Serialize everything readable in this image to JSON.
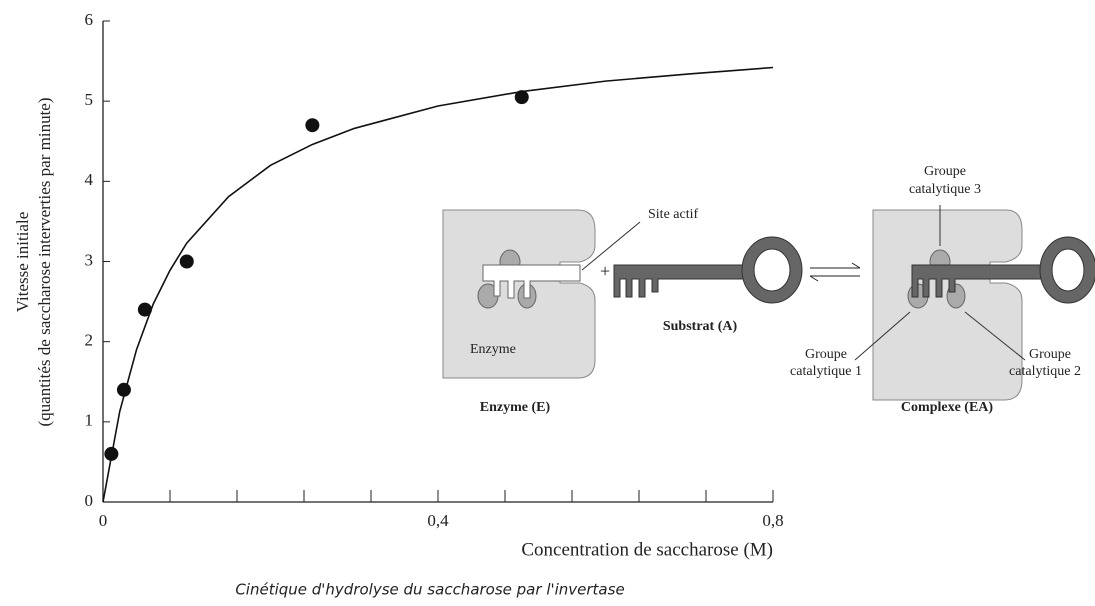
{
  "chart_data": {
    "type": "scatter",
    "ylabel": [
      "Vitesse initiale",
      "(quantités de saccharose interverties par minute)"
    ],
    "xlabel": "Concentration de saccharose (M)",
    "caption": "Cinétique d'hydrolyse du saccharose par l'invertase",
    "xlim": [
      0,
      0.8
    ],
    "ylim": [
      0,
      6
    ],
    "xticks": [
      0,
      {
        "value": 0.4,
        "label": "0,4"
      },
      {
        "value": 0.8,
        "label": "0,8"
      }
    ],
    "xminor_ticks": [
      0.08,
      0.16,
      0.24,
      0.32,
      0.48,
      0.56,
      0.64,
      0.72
    ],
    "yticks": [
      0,
      1,
      2,
      3,
      4,
      5,
      6
    ],
    "points": {
      "color": "#111",
      "x": [
        0.01,
        0.025,
        0.05,
        0.1,
        0.25,
        0.5
      ],
      "y": [
        0.6,
        1.4,
        2.4,
        3.0,
        4.7,
        5.05
      ]
    },
    "curve": {
      "color": "#111",
      "x": [
        0,
        0.02,
        0.04,
        0.06,
        0.08,
        0.1,
        0.15,
        0.2,
        0.25,
        0.3,
        0.4,
        0.5,
        0.6,
        0.7,
        0.8
      ],
      "y": [
        0,
        1.13,
        1.9,
        2.47,
        2.89,
        3.23,
        3.81,
        4.2,
        4.46,
        4.66,
        4.94,
        5.12,
        5.25,
        5.34,
        5.42
      ]
    }
  },
  "diagram": {
    "site_actif": "Site actif",
    "enzyme": "Enzyme",
    "plus": "+",
    "enzyme_label": "Enzyme (E)",
    "substrat_label": "Substrat (A)",
    "groupe3": [
      "Groupe",
      "catalytique 3"
    ],
    "groupe1": [
      "Groupe",
      "catalytique 1"
    ],
    "groupe2": [
      "Groupe",
      "catalytique 2"
    ],
    "complexe_label": "Complexe (EA)"
  }
}
